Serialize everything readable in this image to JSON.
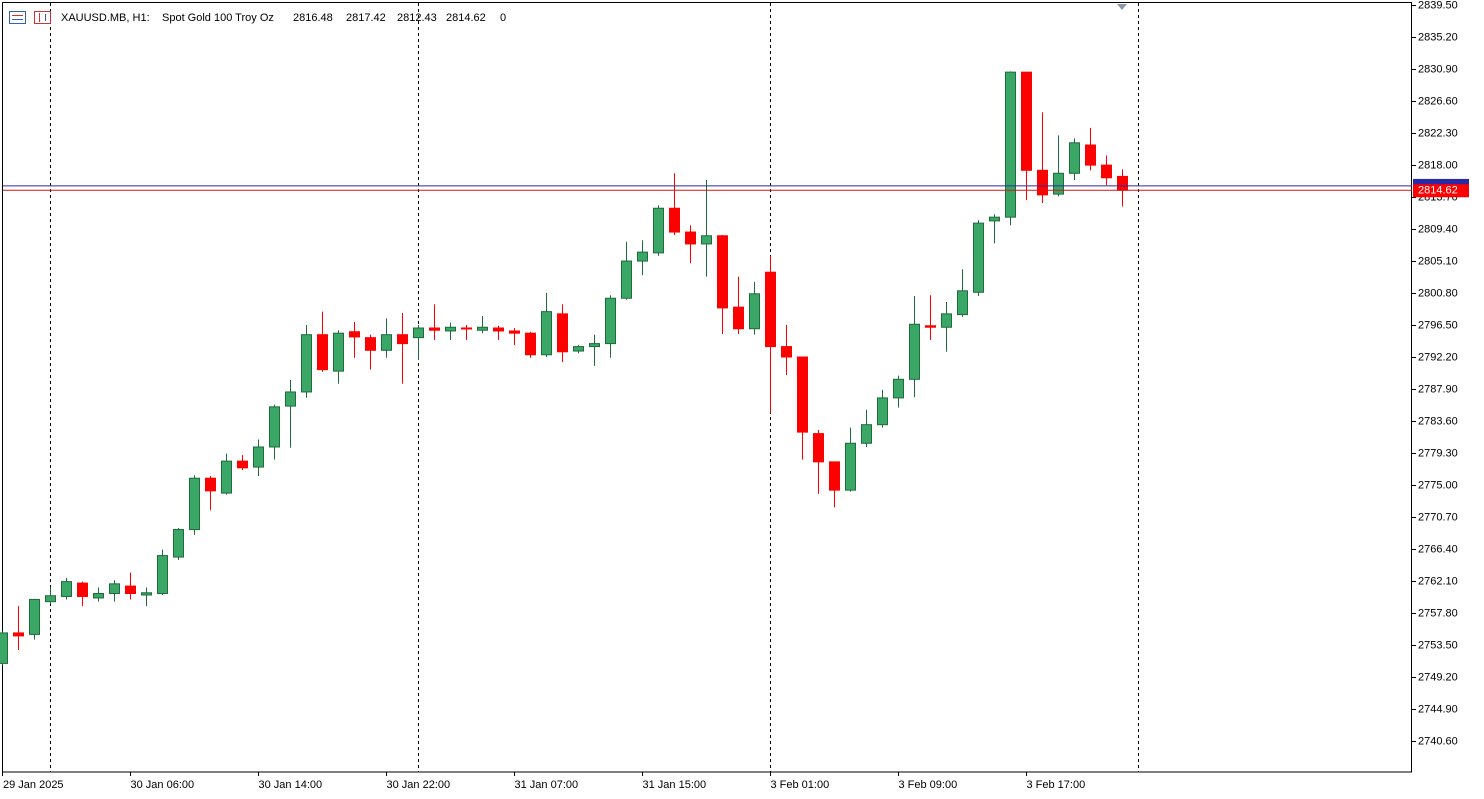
{
  "chart_data": {
    "type": "candlestick",
    "header": {
      "symbol": "XAUUSD.MB, H1:",
      "description": "Spot Gold 100 Troy Oz",
      "extra": 0
    },
    "categories": [
      "29 Jan 2025",
      null,
      null,
      null,
      null,
      null,
      null,
      null,
      "30 Jan 06:00",
      null,
      null,
      null,
      null,
      null,
      null,
      null,
      "30 Jan 14:00",
      null,
      null,
      null,
      null,
      null,
      null,
      null,
      "30 Jan 22:00",
      null,
      null,
      null,
      null,
      null,
      null,
      null,
      "31 Jan 07:00",
      null,
      null,
      null,
      null,
      null,
      null,
      null,
      "31 Jan 15:00",
      null,
      null,
      null,
      null,
      null,
      null,
      null,
      "3 Feb 01:00",
      null,
      null,
      null,
      null,
      null,
      null,
      null,
      "3 Feb 09:00",
      null,
      null,
      null,
      null,
      null,
      null,
      null,
      "3 Feb 17:00",
      null,
      null,
      null,
      null,
      null,
      null
    ],
    "open": [
      2751.0,
      2755.1,
      2754.9,
      2759.3,
      2760.0,
      2761.8,
      2759.8,
      2760.4,
      2761.4,
      2760.2,
      2760.4,
      2765.3,
      2769.0,
      2775.9,
      2773.9,
      2778.2,
      2777.4,
      2780.1,
      2785.6,
      2787.5,
      2795.2,
      2790.3,
      2795.6,
      2794.8,
      2793.1,
      2795.2,
      2794.8,
      2796.1,
      2795.7,
      2796.1,
      2795.8,
      2796.1,
      2795.7,
      2795.4,
      2792.5,
      2798.0,
      2793.0,
      2793.6,
      2794.0,
      2800.1,
      2805.1,
      2806.2,
      2812.2,
      2809.0,
      2807.4,
      2808.5,
      2798.9,
      2796.0,
      2803.6,
      2793.6,
      2792.2,
      2781.9,
      2778.1,
      2774.3,
      2780.6,
      2783.1,
      2786.7,
      2789.2,
      2796.4,
      2796.2,
      2797.9,
      2800.9,
      2810.5,
      2811.0,
      2830.5,
      2817.3,
      2814.1,
      2816.9,
      2820.7,
      2818.0,
      2816.48
    ],
    "high": [
      2755.3,
      2758.7,
      2759.7,
      2761.2,
      2762.5,
      2762.0,
      2761.2,
      2762.2,
      2763.2,
      2761.2,
      2766.3,
      2769.2,
      2776.3,
      2776.2,
      2779.2,
      2779.0,
      2781.1,
      2785.8,
      2789.1,
      2796.5,
      2798.3,
      2795.8,
      2796.9,
      2795.2,
      2797.4,
      2798.1,
      2796.5,
      2799.3,
      2796.8,
      2796.5,
      2797.7,
      2796.4,
      2796.1,
      2795.6,
      2800.8,
      2799.3,
      2793.8,
      2795.2,
      2800.5,
      2807.7,
      2807.9,
      2812.6,
      2816.9,
      2809.9,
      2816.0,
      2808.6,
      2803.0,
      2802.3,
      2805.8,
      2796.5,
      2792.2,
      2782.4,
      2778.1,
      2782.7,
      2785.1,
      2787.8,
      2789.7,
      2800.4,
      2800.5,
      2799.6,
      2804.0,
      2810.6,
      2811.4,
      2830.6,
      2830.5,
      2825.1,
      2822.0,
      2821.6,
      2823.0,
      2819.3,
      2817.42
    ],
    "low": [
      2750.8,
      2752.8,
      2754.2,
      2759.0,
      2759.6,
      2758.7,
      2759.3,
      2759.3,
      2759.6,
      2758.7,
      2760.2,
      2764.9,
      2768.3,
      2771.6,
      2773.7,
      2777.0,
      2776.2,
      2778.4,
      2780.0,
      2786.7,
      2790.2,
      2788.6,
      2792.1,
      2790.5,
      2792.1,
      2788.6,
      2791.8,
      2794.5,
      2794.5,
      2794.5,
      2795.4,
      2794.5,
      2793.8,
      2792.1,
      2792.2,
      2791.5,
      2792.7,
      2791.0,
      2792.1,
      2799.9,
      2803.2,
      2805.8,
      2808.6,
      2804.8,
      2803.0,
      2795.3,
      2795.3,
      2795.2,
      2784.7,
      2789.8,
      2778.4,
      2773.8,
      2772.0,
      2774.1,
      2780.1,
      2782.7,
      2785.4,
      2786.8,
      2794.5,
      2792.9,
      2797.6,
      2800.4,
      2807.5,
      2809.9,
      2813.3,
      2812.9,
      2813.8,
      2816.0,
      2817.3,
      2815.3,
      2812.43
    ],
    "close": [
      2755.1,
      2754.7,
      2759.6,
      2760.1,
      2762.0,
      2760.0,
      2760.4,
      2761.7,
      2760.4,
      2760.5,
      2765.5,
      2769.0,
      2775.9,
      2774.2,
      2778.2,
      2777.3,
      2780.1,
      2785.5,
      2787.5,
      2795.2,
      2790.5,
      2795.4,
      2794.9,
      2793.1,
      2795.2,
      2794.0,
      2796.1,
      2795.8,
      2796.2,
      2796.0,
      2796.2,
      2795.7,
      2795.4,
      2792.5,
      2798.3,
      2792.9,
      2793.6,
      2794.0,
      2800.1,
      2805.1,
      2806.3,
      2812.2,
      2809.0,
      2807.4,
      2808.5,
      2798.8,
      2796.0,
      2800.7,
      2793.6,
      2792.2,
      2782.1,
      2778.1,
      2774.3,
      2780.6,
      2783.1,
      2786.7,
      2789.2,
      2796.6,
      2796.2,
      2798.0,
      2801.1,
      2810.2,
      2811.0,
      2830.5,
      2817.3,
      2814.0,
      2816.9,
      2821.0,
      2818.0,
      2816.3,
      2814.62
    ],
    "up_color": "#3aa767",
    "up_outline": "#1e6b3c",
    "down_color": "#ff0000",
    "ask": 2815.2,
    "ask_color": "#2a2aa8",
    "bid_color": "#d01818",
    "ylim": [
      2736.4,
      2840.2
    ],
    "yticks": [
      {
        "value": 2740.6,
        "label": "2740.60"
      },
      {
        "value": 2744.9,
        "label": "2744.90"
      },
      {
        "value": 2749.2,
        "label": "2749.20"
      },
      {
        "value": 2753.5,
        "label": "2753.50"
      },
      {
        "value": 2757.8,
        "label": "2757.80"
      },
      {
        "value": 2762.1,
        "label": "2762.10"
      },
      {
        "value": 2766.4,
        "label": "2766.40"
      },
      {
        "value": 2770.7,
        "label": "2770.70"
      },
      {
        "value": 2775.0,
        "label": "2775.00"
      },
      {
        "value": 2779.3,
        "label": "2779.30"
      },
      {
        "value": 2783.6,
        "label": "2783.60"
      },
      {
        "value": 2787.9,
        "label": "2787.90"
      },
      {
        "value": 2792.2,
        "label": "2792.20"
      },
      {
        "value": 2796.5,
        "label": "2796.50"
      },
      {
        "value": 2800.8,
        "label": "2800.80"
      },
      {
        "value": 2805.1,
        "label": "2805.10"
      },
      {
        "value": 2809.4,
        "label": "2809.40"
      },
      {
        "value": 2813.7,
        "label": "2813.70"
      },
      {
        "value": 2818.0,
        "label": "2818.00"
      },
      {
        "value": 2822.3,
        "label": "2822.30"
      },
      {
        "value": 2826.6,
        "label": "2826.60"
      },
      {
        "value": 2830.9,
        "label": "2830.90"
      },
      {
        "value": 2835.2,
        "label": "2835.20"
      },
      {
        "value": 2839.5,
        "label": "2839.50"
      }
    ],
    "grid": false
  }
}
